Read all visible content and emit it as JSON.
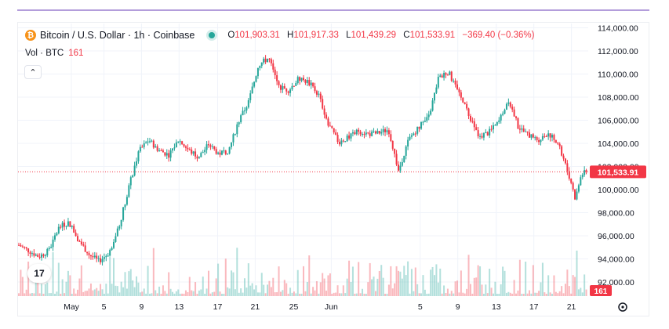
{
  "header": {
    "symbol_title": "Bitcoin / U.S. Dollar · 1h · Coinbase",
    "coin_glyph": "₿",
    "ohlc": [
      {
        "key": "O",
        "value": "101,903.31"
      },
      {
        "key": "H",
        "value": "101,917.33"
      },
      {
        "key": "L",
        "value": "101,439.29"
      },
      {
        "key": "C",
        "value": "101,533.91"
      },
      {
        "key": "",
        "value": "−369.40 (−0.36%)"
      }
    ],
    "volume_label": "Vol · BTC",
    "volume_value": "161",
    "collapse_glyph": "⌃",
    "logo_text": "17"
  },
  "colors": {
    "up": "#26a69a",
    "down": "#f23645",
    "price_line": "#f23645",
    "grid": "#f0f3fa",
    "top_accent": "#b39ddb"
  },
  "icons": [
    "bitcoin-coin-icon",
    "status-dot-icon",
    "chevron-up-icon",
    "tradingview-logo-icon",
    "settings-gear-icon"
  ],
  "chart_data": {
    "type": "candlestick",
    "interval": "1h",
    "y_ticks": [
      "114,000.00",
      "112,000.00",
      "110,000.00",
      "108,000.00",
      "106,000.00",
      "104,000.00",
      "102,000.00",
      "100,000.00",
      "98,000.00",
      "96,000.00",
      "94,000.00",
      "92,000.00"
    ],
    "ylim": [
      91000,
      114600
    ],
    "x_ticks": [
      "May",
      "5",
      "9",
      "13",
      "17",
      "21",
      "25",
      "Jun",
      "5",
      "9",
      "13",
      "17",
      "21"
    ],
    "grid": true,
    "last_price": 101533.91,
    "last_price_label": "101,533.91",
    "last_volume_label": "161",
    "close_path": [
      {
        "day": 0,
        "price": 95200
      },
      {
        "day": 2,
        "price": 94200
      },
      {
        "day": 3,
        "price": 94700
      },
      {
        "day": 4,
        "price": 96700
      },
      {
        "day": 5,
        "price": 97200
      },
      {
        "day": 6,
        "price": 95600
      },
      {
        "day": 7,
        "price": 94400
      },
      {
        "day": 8,
        "price": 93800
      },
      {
        "day": 9,
        "price": 94500
      },
      {
        "day": 10,
        "price": 96700
      },
      {
        "day": 11,
        "price": 100200
      },
      {
        "day": 12,
        "price": 103300
      },
      {
        "day": 13,
        "price": 104300
      },
      {
        "day": 14,
        "price": 103400
      },
      {
        "day": 15,
        "price": 103000
      },
      {
        "day": 16,
        "price": 104300
      },
      {
        "day": 17,
        "price": 103400
      },
      {
        "day": 18,
        "price": 102800
      },
      {
        "day": 19,
        "price": 103900
      },
      {
        "day": 20,
        "price": 103100
      },
      {
        "day": 21,
        "price": 103400
      },
      {
        "day": 22,
        "price": 105900
      },
      {
        "day": 23,
        "price": 107600
      },
      {
        "day": 24,
        "price": 110800
      },
      {
        "day": 25,
        "price": 111400
      },
      {
        "day": 26,
        "price": 108900
      },
      {
        "day": 27,
        "price": 108600
      },
      {
        "day": 28,
        "price": 109600
      },
      {
        "day": 29,
        "price": 109300
      },
      {
        "day": 30,
        "price": 108200
      },
      {
        "day": 31,
        "price": 105600
      },
      {
        "day": 32,
        "price": 104100
      },
      {
        "day": 33,
        "price": 104500
      },
      {
        "day": 34,
        "price": 105100
      },
      {
        "day": 35,
        "price": 104800
      },
      {
        "day": 36,
        "price": 104900
      },
      {
        "day": 37,
        "price": 105200
      },
      {
        "day": 38,
        "price": 101600
      },
      {
        "day": 39,
        "price": 104300
      },
      {
        "day": 40,
        "price": 105400
      },
      {
        "day": 41,
        "price": 106200
      },
      {
        "day": 42,
        "price": 109600
      },
      {
        "day": 43,
        "price": 110200
      },
      {
        "day": 44,
        "price": 108300
      },
      {
        "day": 45,
        "price": 106600
      },
      {
        "day": 46,
        "price": 104600
      },
      {
        "day": 47,
        "price": 104900
      },
      {
        "day": 48,
        "price": 105800
      },
      {
        "day": 49,
        "price": 107800
      },
      {
        "day": 50,
        "price": 105400
      },
      {
        "day": 51,
        "price": 104700
      },
      {
        "day": 52,
        "price": 104300
      },
      {
        "day": 53,
        "price": 104900
      },
      {
        "day": 54,
        "price": 103900
      },
      {
        "day": 55,
        "price": 101400
      },
      {
        "day": 55.7,
        "price": 99200
      },
      {
        "day": 56.3,
        "price": 101300
      },
      {
        "day": 56.8,
        "price": 101533.91
      }
    ]
  }
}
